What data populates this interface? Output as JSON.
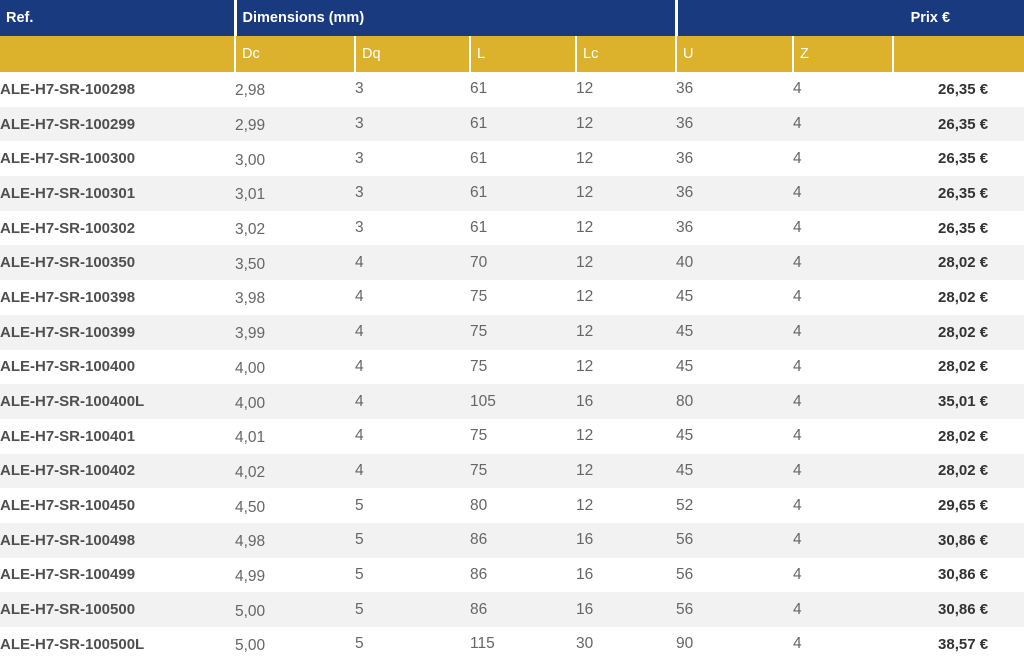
{
  "header": {
    "ref": "Ref.",
    "dimensions": "Dimensions (mm)",
    "prix": "Prix €",
    "sub": {
      "dc": "Dc",
      "dq": "Dq",
      "l": "L",
      "lc": "Lc",
      "u": "U",
      "z": "Z"
    }
  },
  "rows": [
    {
      "ref": "ALE-H7-SR-100298",
      "dc": "2,98",
      "dq": "3",
      "l": "61",
      "lc": "12",
      "u": "36",
      "z": "4",
      "price": "26,35 €"
    },
    {
      "ref": "ALE-H7-SR-100299",
      "dc": "2,99",
      "dq": "3",
      "l": "61",
      "lc": "12",
      "u": "36",
      "z": "4",
      "price": "26,35 €"
    },
    {
      "ref": "ALE-H7-SR-100300",
      "dc": "3,00",
      "dq": "3",
      "l": "61",
      "lc": "12",
      "u": "36",
      "z": "4",
      "price": "26,35 €"
    },
    {
      "ref": "ALE-H7-SR-100301",
      "dc": "3,01",
      "dq": "3",
      "l": "61",
      "lc": "12",
      "u": "36",
      "z": "4",
      "price": "26,35 €"
    },
    {
      "ref": "ALE-H7-SR-100302",
      "dc": "3,02",
      "dq": "3",
      "l": "61",
      "lc": "12",
      "u": "36",
      "z": "4",
      "price": "26,35 €"
    },
    {
      "ref": "ALE-H7-SR-100350",
      "dc": "3,50",
      "dq": "4",
      "l": "70",
      "lc": "12",
      "u": "40",
      "z": "4",
      "price": "28,02 €"
    },
    {
      "ref": "ALE-H7-SR-100398",
      "dc": "3,98",
      "dq": "4",
      "l": "75",
      "lc": "12",
      "u": "45",
      "z": "4",
      "price": "28,02 €"
    },
    {
      "ref": "ALE-H7-SR-100399",
      "dc": "3,99",
      "dq": "4",
      "l": "75",
      "lc": "12",
      "u": "45",
      "z": "4",
      "price": "28,02 €"
    },
    {
      "ref": "ALE-H7-SR-100400",
      "dc": "4,00",
      "dq": "4",
      "l": "75",
      "lc": "12",
      "u": "45",
      "z": "4",
      "price": "28,02 €"
    },
    {
      "ref": "ALE-H7-SR-100400L",
      "dc": "4,00",
      "dq": "4",
      "l": "105",
      "lc": "16",
      "u": "80",
      "z": "4",
      "price": "35,01 €"
    },
    {
      "ref": "ALE-H7-SR-100401",
      "dc": "4,01",
      "dq": "4",
      "l": "75",
      "lc": "12",
      "u": "45",
      "z": "4",
      "price": "28,02 €"
    },
    {
      "ref": "ALE-H7-SR-100402",
      "dc": "4,02",
      "dq": "4",
      "l": "75",
      "lc": "12",
      "u": "45",
      "z": "4",
      "price": "28,02 €"
    },
    {
      "ref": "ALE-H7-SR-100450",
      "dc": "4,50",
      "dq": "5",
      "l": "80",
      "lc": "12",
      "u": "52",
      "z": "4",
      "price": "29,65 €"
    },
    {
      "ref": "ALE-H7-SR-100498",
      "dc": "4,98",
      "dq": "5",
      "l": "86",
      "lc": "16",
      "u": "56",
      "z": "4",
      "price": "30,86 €"
    },
    {
      "ref": "ALE-H7-SR-100499",
      "dc": "4,99",
      "dq": "5",
      "l": "86",
      "lc": "16",
      "u": "56",
      "z": "4",
      "price": "30,86 €"
    },
    {
      "ref": "ALE-H7-SR-100500",
      "dc": "5,00",
      "dq": "5",
      "l": "86",
      "lc": "16",
      "u": "56",
      "z": "4",
      "price": "30,86 €"
    },
    {
      "ref": "ALE-H7-SR-100500L",
      "dc": "5,00",
      "dq": "5",
      "l": "115",
      "lc": "30",
      "u": "90",
      "z": "4",
      "price": "38,57 €"
    }
  ]
}
